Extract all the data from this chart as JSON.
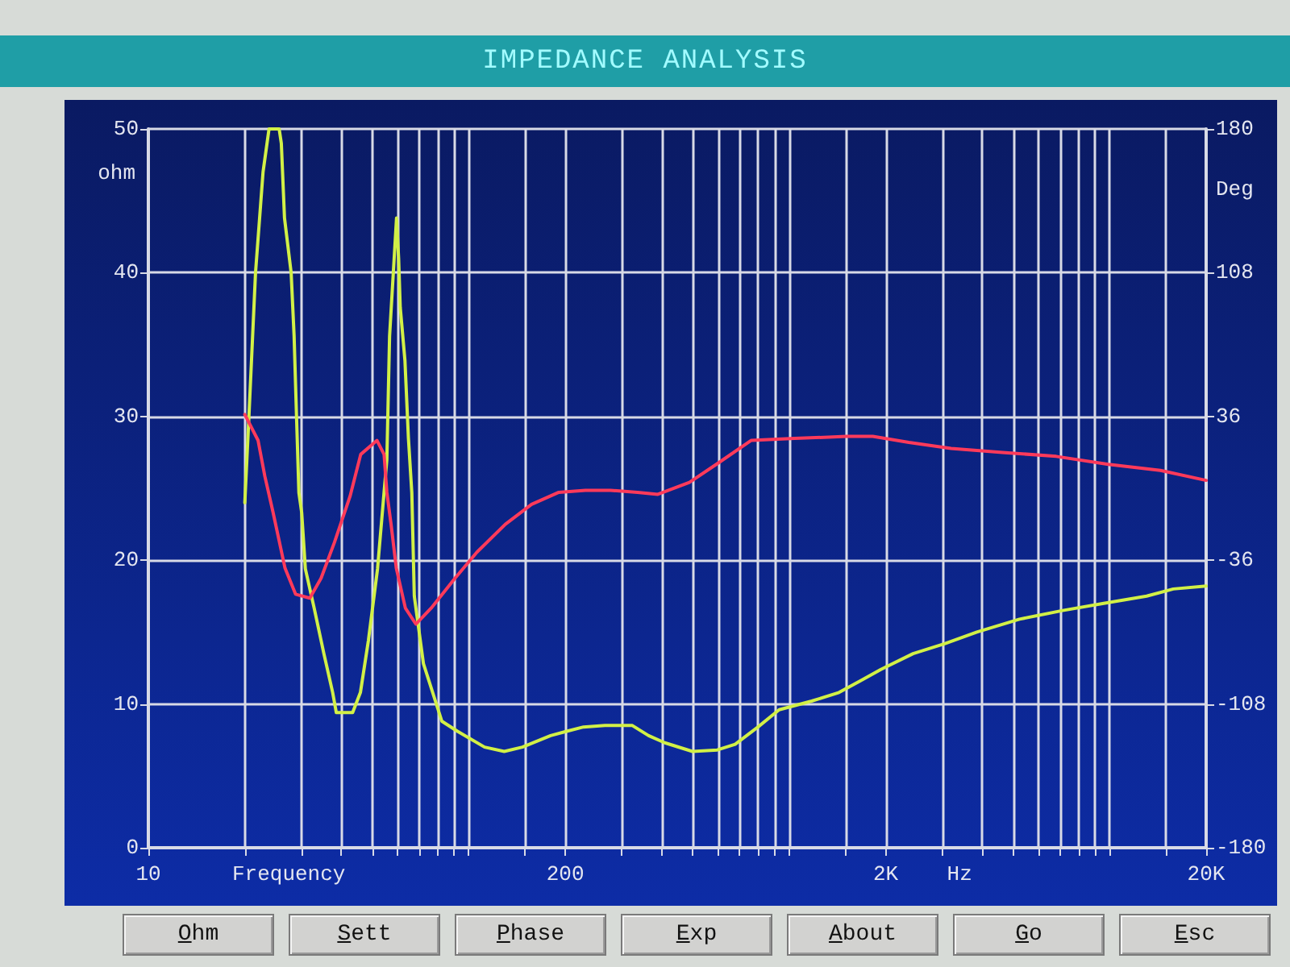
{
  "chart_data": {
    "type": "line",
    "title": "IMPEDANCE ANALYSIS",
    "xlabel": "Frequency",
    "ylabel": "ohm",
    "y2label": "Deg",
    "annotations": [
      "Hz",
      "Ohm",
      "Sett",
      "Phase",
      "Exp",
      "About",
      "Go",
      "Esc"
    ],
    "log": "x",
    "grid": true,
    "xlim": [
      10,
      20000
    ],
    "xticks": [
      10,
      {
        "value": 20,
        "label": null
      },
      {
        "value": 30,
        "label": null
      },
      {
        "value": 40,
        "label": null
      },
      {
        "value": 50,
        "label": null
      },
      {
        "value": 60,
        "label": null
      },
      {
        "value": 70,
        "label": null
      },
      {
        "value": 80,
        "label": null
      },
      {
        "value": 90,
        "label": null
      },
      {
        "value": 100,
        "label": null
      },
      {
        "value": 150,
        "label": null
      },
      200,
      {
        "value": 300,
        "label": null
      },
      {
        "value": 400,
        "label": null
      },
      {
        "value": 500,
        "label": null
      },
      {
        "value": 600,
        "label": null
      },
      {
        "value": 700,
        "label": null
      },
      {
        "value": 800,
        "label": null
      },
      {
        "value": 900,
        "label": null
      },
      {
        "value": 1000,
        "label": null
      },
      {
        "value": 1500,
        "label": null
      },
      {
        "value": 2000,
        "label": "2K"
      },
      {
        "value": 3000,
        "label": null
      },
      {
        "value": 4000,
        "label": null
      },
      {
        "value": 5000,
        "label": null
      },
      {
        "value": 6000,
        "label": null
      },
      {
        "value": 7000,
        "label": null
      },
      {
        "value": 8000,
        "label": null
      },
      {
        "value": 9000,
        "label": null
      },
      {
        "value": 10000,
        "label": null
      },
      {
        "value": 15000,
        "label": null
      },
      {
        "value": 20000,
        "label": "20K"
      }
    ],
    "ylim": [
      0,
      50
    ],
    "yticks": [
      0,
      10,
      20,
      30,
      40,
      50
    ],
    "y2lim": [
      -180,
      180
    ],
    "y2ticks": [
      -180,
      -108,
      -36,
      36,
      108,
      180
    ],
    "series": [
      {
        "color": "#d2f046",
        "x": [
          20,
          20.6,
          21.6,
          22.8,
          23.8,
          25.6,
          26,
          26.6,
          27.9,
          28.5,
          29,
          29.5,
          30.1,
          30.9,
          32.9,
          35.3,
          37.6,
          38.6,
          43.4,
          45.9,
          48.6,
          51.9,
          55.5,
          56.6,
          59.5,
          60.4,
          61.1,
          63.2,
          64.8,
          66.4,
          67.6,
          72.2,
          82.4,
          92.2,
          112,
          129,
          147,
          180,
          202,
          228,
          266,
          324,
          364,
          409,
          499,
          596,
          678,
          799,
          930,
          1175,
          1430,
          1665,
          1932,
          2435,
          3065,
          3850,
          5230,
          7130,
          9580,
          13040,
          15800,
          20000
        ],
        "values": [
          24,
          30,
          40,
          47,
          50,
          50,
          49,
          43.8,
          40,
          35.6,
          30,
          24.7,
          23.3,
          19.4,
          16.7,
          13.5,
          10.8,
          9.4,
          9.4,
          10.8,
          14.4,
          19.4,
          27,
          35.6,
          43.8,
          41,
          37.6,
          33.9,
          28.5,
          24.7,
          17.5,
          12.8,
          8.8,
          8.1,
          7.0,
          6.7,
          7.0,
          7.8,
          8.1,
          8.4,
          8.5,
          8.5,
          7.8,
          7.3,
          6.7,
          6.8,
          7.2,
          8.4,
          9.6,
          10.2,
          10.8,
          11.6,
          12.4,
          13.5,
          14.2,
          15.0,
          15.9,
          16.5,
          17.0,
          17.5,
          18.0,
          18.2
        ]
      },
      {
        "color": "#ff3a5a",
        "axis": "y2",
        "x": [
          20,
          22,
          23.1,
          24.5,
          26.7,
          28.8,
          31.9,
          34.6,
          38.1,
          42.6,
          46,
          51.7,
          54.4,
          55.5,
          57.2,
          59.4,
          63.4,
          68.4,
          76.3,
          90.6,
          106,
          130,
          157,
          191,
          231,
          277,
          336,
          389,
          488,
          592,
          760,
          1040,
          1507,
          1823,
          2362,
          3200,
          4630,
          6810,
          9910,
          14400,
          20000
        ],
        "values": [
          37,
          24,
          6,
          -12,
          -40,
          -53,
          -55,
          -45,
          -27,
          -4,
          17,
          24,
          17,
          -2,
          -18,
          -40,
          -60,
          -68,
          -60,
          -45,
          -32,
          -18,
          -8,
          -2,
          -1,
          -1,
          -2,
          -3,
          3,
          12,
          24,
          25,
          26,
          26,
          23,
          20,
          18,
          16,
          12,
          9,
          4
        ]
      }
    ]
  }
}
